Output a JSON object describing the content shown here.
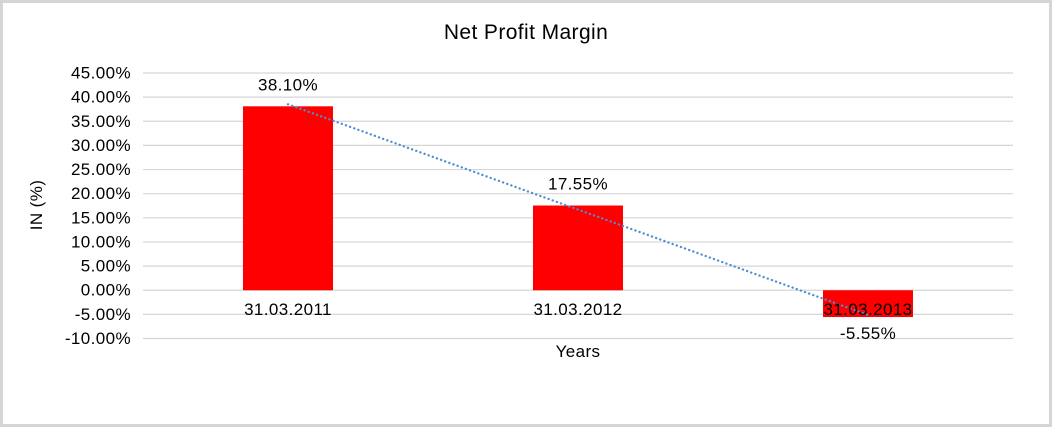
{
  "chart_data": {
    "type": "bar",
    "title": "Net Profit Margin",
    "xlabel": "Years",
    "ylabel": "IN (%)",
    "categories": [
      "31.03.2011",
      "31.03.2012",
      "31.03.2013"
    ],
    "values": [
      38.1,
      17.55,
      -5.55
    ],
    "data_labels": [
      "38.10%",
      "17.55%",
      "-5.55%"
    ],
    "ytick_labels": [
      "45.00%",
      "40.00%",
      "35.00%",
      "30.00%",
      "25.00%",
      "20.00%",
      "15.00%",
      "10.00%",
      "5.00%",
      "0.00%",
      "-5.00%",
      "-10.00%"
    ],
    "ylim": [
      -10,
      45
    ],
    "ytick_step": 5,
    "grid": "horizontal",
    "legend": "none",
    "trendline": {
      "type": "linear",
      "style": "dotted",
      "span": "first-to-last-category"
    },
    "colors": {
      "bar": "#FF0000",
      "trendline": "#4F8DD2",
      "gridline": "#D6D6D6",
      "text": "#000000",
      "frame_border": "#D5D5D5",
      "background": "#FFFFFF"
    }
  }
}
